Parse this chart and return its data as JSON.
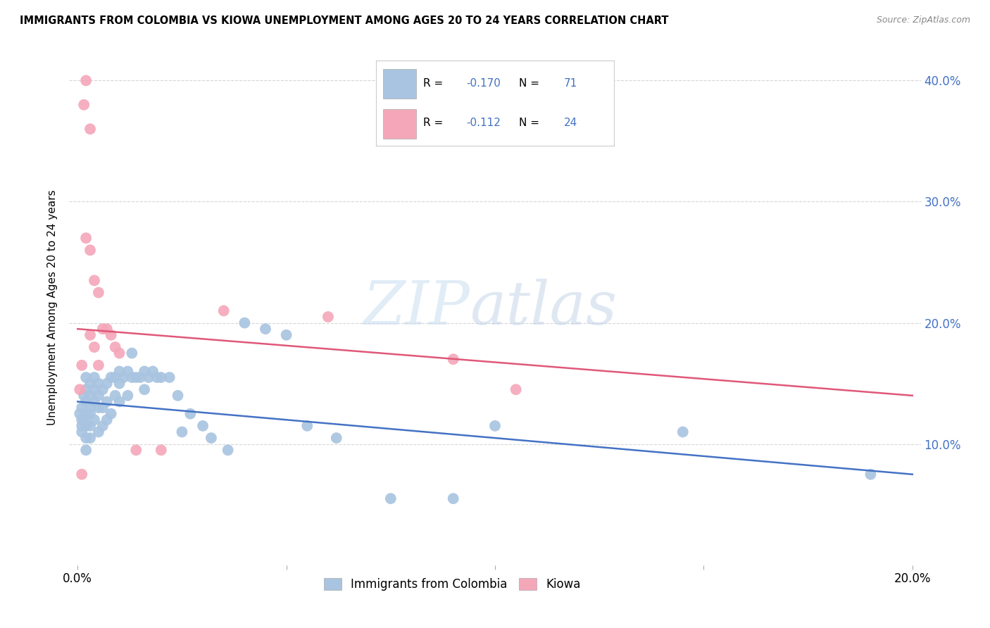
{
  "title": "IMMIGRANTS FROM COLOMBIA VS KIOWA UNEMPLOYMENT AMONG AGES 20 TO 24 YEARS CORRELATION CHART",
  "source": "Source: ZipAtlas.com",
  "xlim": [
    0.0,
    0.2
  ],
  "ylim": [
    0.0,
    0.42
  ],
  "ylabel": "Unemployment Among Ages 20 to 24 years",
  "legend_labels": [
    "Immigrants from Colombia",
    "Kiowa"
  ],
  "R_colombia": -0.17,
  "N_colombia": 71,
  "R_kiowa": -0.112,
  "N_kiowa": 24,
  "color_colombia": "#a8c4e0",
  "color_kiowa": "#f4a7b9",
  "line_color_colombia": "#4472c4",
  "line_color_kiowa": "#e05878",
  "colombia_x": [
    0.0005,
    0.001,
    0.001,
    0.001,
    0.001,
    0.0015,
    0.0015,
    0.002,
    0.002,
    0.002,
    0.002,
    0.002,
    0.002,
    0.002,
    0.003,
    0.003,
    0.003,
    0.003,
    0.003,
    0.003,
    0.004,
    0.004,
    0.004,
    0.004,
    0.005,
    0.005,
    0.005,
    0.005,
    0.006,
    0.006,
    0.006,
    0.007,
    0.007,
    0.007,
    0.008,
    0.008,
    0.009,
    0.009,
    0.01,
    0.01,
    0.01,
    0.011,
    0.012,
    0.012,
    0.013,
    0.013,
    0.014,
    0.015,
    0.016,
    0.016,
    0.017,
    0.018,
    0.019,
    0.02,
    0.022,
    0.024,
    0.025,
    0.027,
    0.03,
    0.032,
    0.036,
    0.04,
    0.045,
    0.05,
    0.055,
    0.062,
    0.075,
    0.09,
    0.1,
    0.145,
    0.19
  ],
  "colombia_y": [
    0.125,
    0.13,
    0.12,
    0.115,
    0.11,
    0.14,
    0.12,
    0.155,
    0.145,
    0.135,
    0.125,
    0.115,
    0.105,
    0.095,
    0.15,
    0.14,
    0.13,
    0.125,
    0.115,
    0.105,
    0.155,
    0.145,
    0.135,
    0.12,
    0.15,
    0.14,
    0.13,
    0.11,
    0.145,
    0.13,
    0.115,
    0.15,
    0.135,
    0.12,
    0.155,
    0.125,
    0.155,
    0.14,
    0.16,
    0.15,
    0.135,
    0.155,
    0.16,
    0.14,
    0.175,
    0.155,
    0.155,
    0.155,
    0.16,
    0.145,
    0.155,
    0.16,
    0.155,
    0.155,
    0.155,
    0.14,
    0.11,
    0.125,
    0.115,
    0.105,
    0.095,
    0.2,
    0.195,
    0.19,
    0.115,
    0.105,
    0.055,
    0.055,
    0.115,
    0.11,
    0.075
  ],
  "kiowa_x": [
    0.0005,
    0.001,
    0.001,
    0.0015,
    0.002,
    0.002,
    0.003,
    0.003,
    0.003,
    0.004,
    0.004,
    0.005,
    0.005,
    0.006,
    0.007,
    0.008,
    0.009,
    0.01,
    0.014,
    0.02,
    0.035,
    0.06,
    0.09,
    0.105
  ],
  "kiowa_y": [
    0.145,
    0.165,
    0.075,
    0.38,
    0.4,
    0.27,
    0.36,
    0.26,
    0.19,
    0.235,
    0.18,
    0.225,
    0.165,
    0.195,
    0.195,
    0.19,
    0.18,
    0.175,
    0.095,
    0.095,
    0.21,
    0.205,
    0.17,
    0.145
  ],
  "watermark_zip": "ZIP",
  "watermark_atlas": "atlas",
  "background_color": "#ffffff",
  "grid_color": "#cccccc"
}
